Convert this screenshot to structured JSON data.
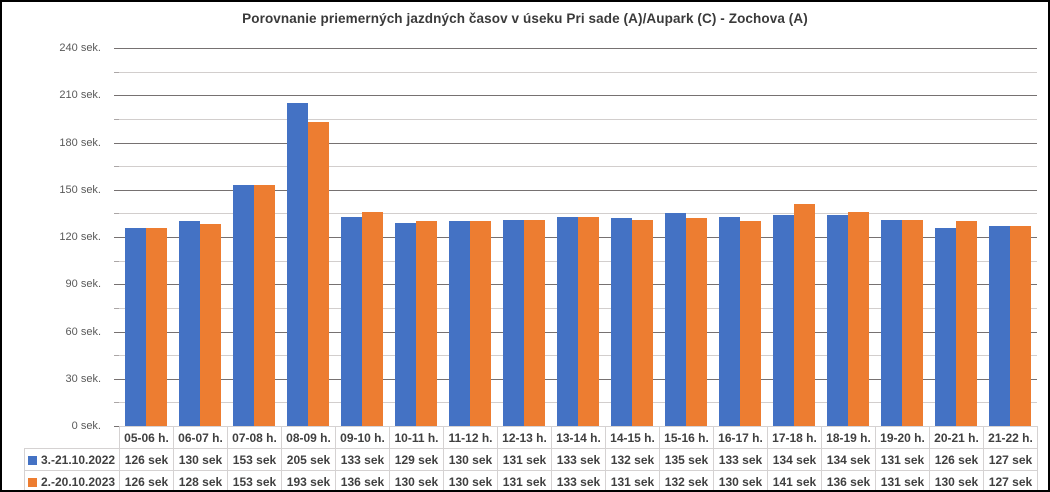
{
  "chart_data": {
    "type": "bar",
    "title": "Porovnanie priemerných jazdných časov v úseku Pri sade (A)/Aupark (C) - Zochova (A)",
    "categories": [
      "05-06 h.",
      "06-07 h.",
      "07-08 h.",
      "08-09 h.",
      "09-10 h.",
      "10-11 h.",
      "11-12 h.",
      "12-13 h.",
      "13-14 h.",
      "14-15 h.",
      "15-16 h.",
      "16-17 h.",
      "17-18 h.",
      "18-19 h.",
      "19-20 h.",
      "20-21 h.",
      "21-22 h."
    ],
    "series": [
      {
        "name": "3.-21.10.2022",
        "color": "#4472C4",
        "values": [
          126,
          130,
          153,
          205,
          133,
          129,
          130,
          131,
          133,
          132,
          135,
          133,
          134,
          134,
          131,
          126,
          127
        ]
      },
      {
        "name": "2.-20.10.2023",
        "color": "#ED7D31",
        "values": [
          126,
          128,
          153,
          193,
          136,
          130,
          130,
          131,
          133,
          131,
          132,
          130,
          141,
          136,
          131,
          130,
          127
        ]
      }
    ],
    "value_suffix": " sek",
    "y_axis": {
      "min": 0,
      "max": 240,
      "major_step": 30,
      "minor_step": 15,
      "tick_labels": [
        "0 sek.",
        "30 sek.",
        "60 sek.",
        "90 sek.",
        "120 sek.",
        "150 sek.",
        "180 sek.",
        "210 sek.",
        "240 sek."
      ]
    },
    "legend_position": "data-table-left",
    "grid": true,
    "data_table": true
  },
  "colors": {
    "series_blue": "#4472C4",
    "series_orange": "#ED7D31",
    "major_gridline": "#767171",
    "minor_gridline": "#d2cecd",
    "table_border": "#d5d2d2",
    "table_text": "#404040",
    "axis_label_text": "#595959",
    "title_text": "#3a3a3a",
    "frame_border": "#000000"
  }
}
